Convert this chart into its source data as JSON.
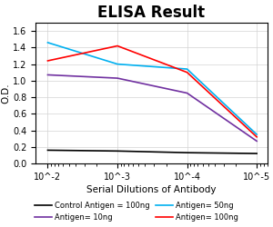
{
  "title": "ELISA Result",
  "xlabel": "Serial Dilutions of Antibody",
  "ylabel": "O.D.",
  "ylim": [
    0,
    1.7
  ],
  "yticks": [
    0,
    0.2,
    0.4,
    0.6,
    0.8,
    1.0,
    1.2,
    1.4,
    1.6
  ],
  "x_values": [
    0.01,
    0.001,
    0.0001,
    1e-05
  ],
  "xtick_labels": [
    "10^-2",
    "10^-3",
    "10^-4",
    "10^-5"
  ],
  "lines": [
    {
      "label": "Control Antigen = 100ng",
      "color": "black",
      "y": [
        0.16,
        0.15,
        0.13,
        0.12
      ]
    },
    {
      "label": "Antigen= 10ng",
      "color": "#7030A0",
      "y": [
        1.07,
        1.03,
        0.85,
        0.27
      ]
    },
    {
      "label": "Antigen= 50ng",
      "color": "#00B0F0",
      "y": [
        1.46,
        1.2,
        1.14,
        0.35
      ]
    },
    {
      "label": "Antigen= 100ng",
      "color": "red",
      "y": [
        1.24,
        1.42,
        1.1,
        0.32
      ]
    }
  ],
  "background_color": "#ffffff",
  "title_fontsize": 12,
  "label_fontsize": 7.5,
  "legend_fontsize": 6.0,
  "tick_fontsize": 7
}
